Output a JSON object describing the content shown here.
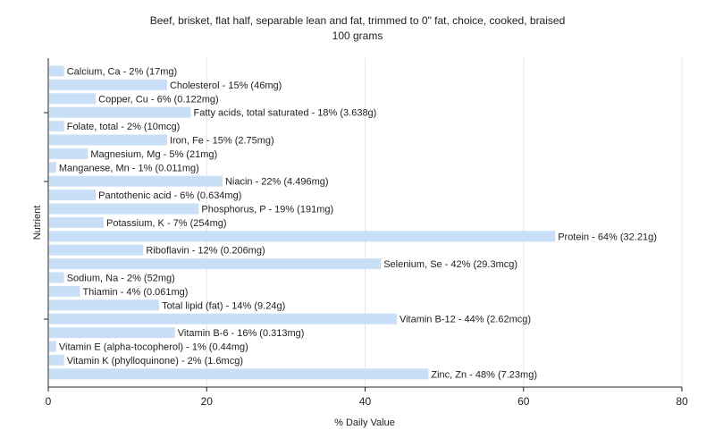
{
  "chart_data": {
    "type": "bar",
    "orientation": "horizontal",
    "title": "Beef, brisket, flat half, separable lean and fat, trimmed to 0\" fat, choice, cooked, braised",
    "subtitle": "100 grams",
    "xlabel": "% Daily Value",
    "ylabel": "Nutrient",
    "xlim": [
      0,
      80
    ],
    "xticks": [
      0,
      20,
      40,
      60,
      80
    ],
    "grid": true,
    "bar_color": "#c9dff8",
    "categories": [
      "Calcium, Ca",
      "Cholesterol",
      "Copper, Cu",
      "Fatty acids, total saturated",
      "Folate, total",
      "Iron, Fe",
      "Magnesium, Mg",
      "Manganese, Mn",
      "Niacin",
      "Pantothenic acid",
      "Phosphorus, P",
      "Potassium, K",
      "Protein",
      "Riboflavin",
      "Selenium, Se",
      "Sodium, Na",
      "Thiamin",
      "Total lipid (fat)",
      "Vitamin B-12",
      "Vitamin B-6",
      "Vitamin E (alpha-tocopherol)",
      "Vitamin K (phylloquinone)",
      "Zinc, Zn"
    ],
    "values": [
      2,
      15,
      6,
      18,
      2,
      15,
      5,
      1,
      22,
      6,
      19,
      7,
      64,
      12,
      42,
      2,
      4,
      14,
      44,
      16,
      1,
      2,
      48
    ],
    "labels": [
      "Calcium, Ca - 2% (17mg)",
      "Cholesterol - 15% (46mg)",
      "Copper, Cu - 6% (0.122mg)",
      "Fatty acids, total saturated - 18% (3.638g)",
      "Folate, total - 2% (10mcg)",
      "Iron, Fe - 15% (2.75mg)",
      "Magnesium, Mg - 5% (21mg)",
      "Manganese, Mn - 1% (0.011mg)",
      "Niacin - 22% (4.496mg)",
      "Pantothenic acid - 6% (0.634mg)",
      "Phosphorus, P - 19% (191mg)",
      "Potassium, K - 7% (254mg)",
      "Protein - 64% (32.21g)",
      "Riboflavin - 12% (0.206mg)",
      "Selenium, Se - 42% (29.3mcg)",
      "Sodium, Na - 2% (52mg)",
      "Thiamin - 4% (0.061mg)",
      "Total lipid (fat) - 14% (9.24g)",
      "Vitamin B-12 - 44% (2.62mcg)",
      "Vitamin B-6 - 16% (0.313mg)",
      "Vitamin E (alpha-tocopherol) - 1% (0.44mg)",
      "Vitamin K (phylloquinone) - 2% (1.6mcg)",
      "Zinc, Zn - 48% (7.23mg)"
    ]
  }
}
